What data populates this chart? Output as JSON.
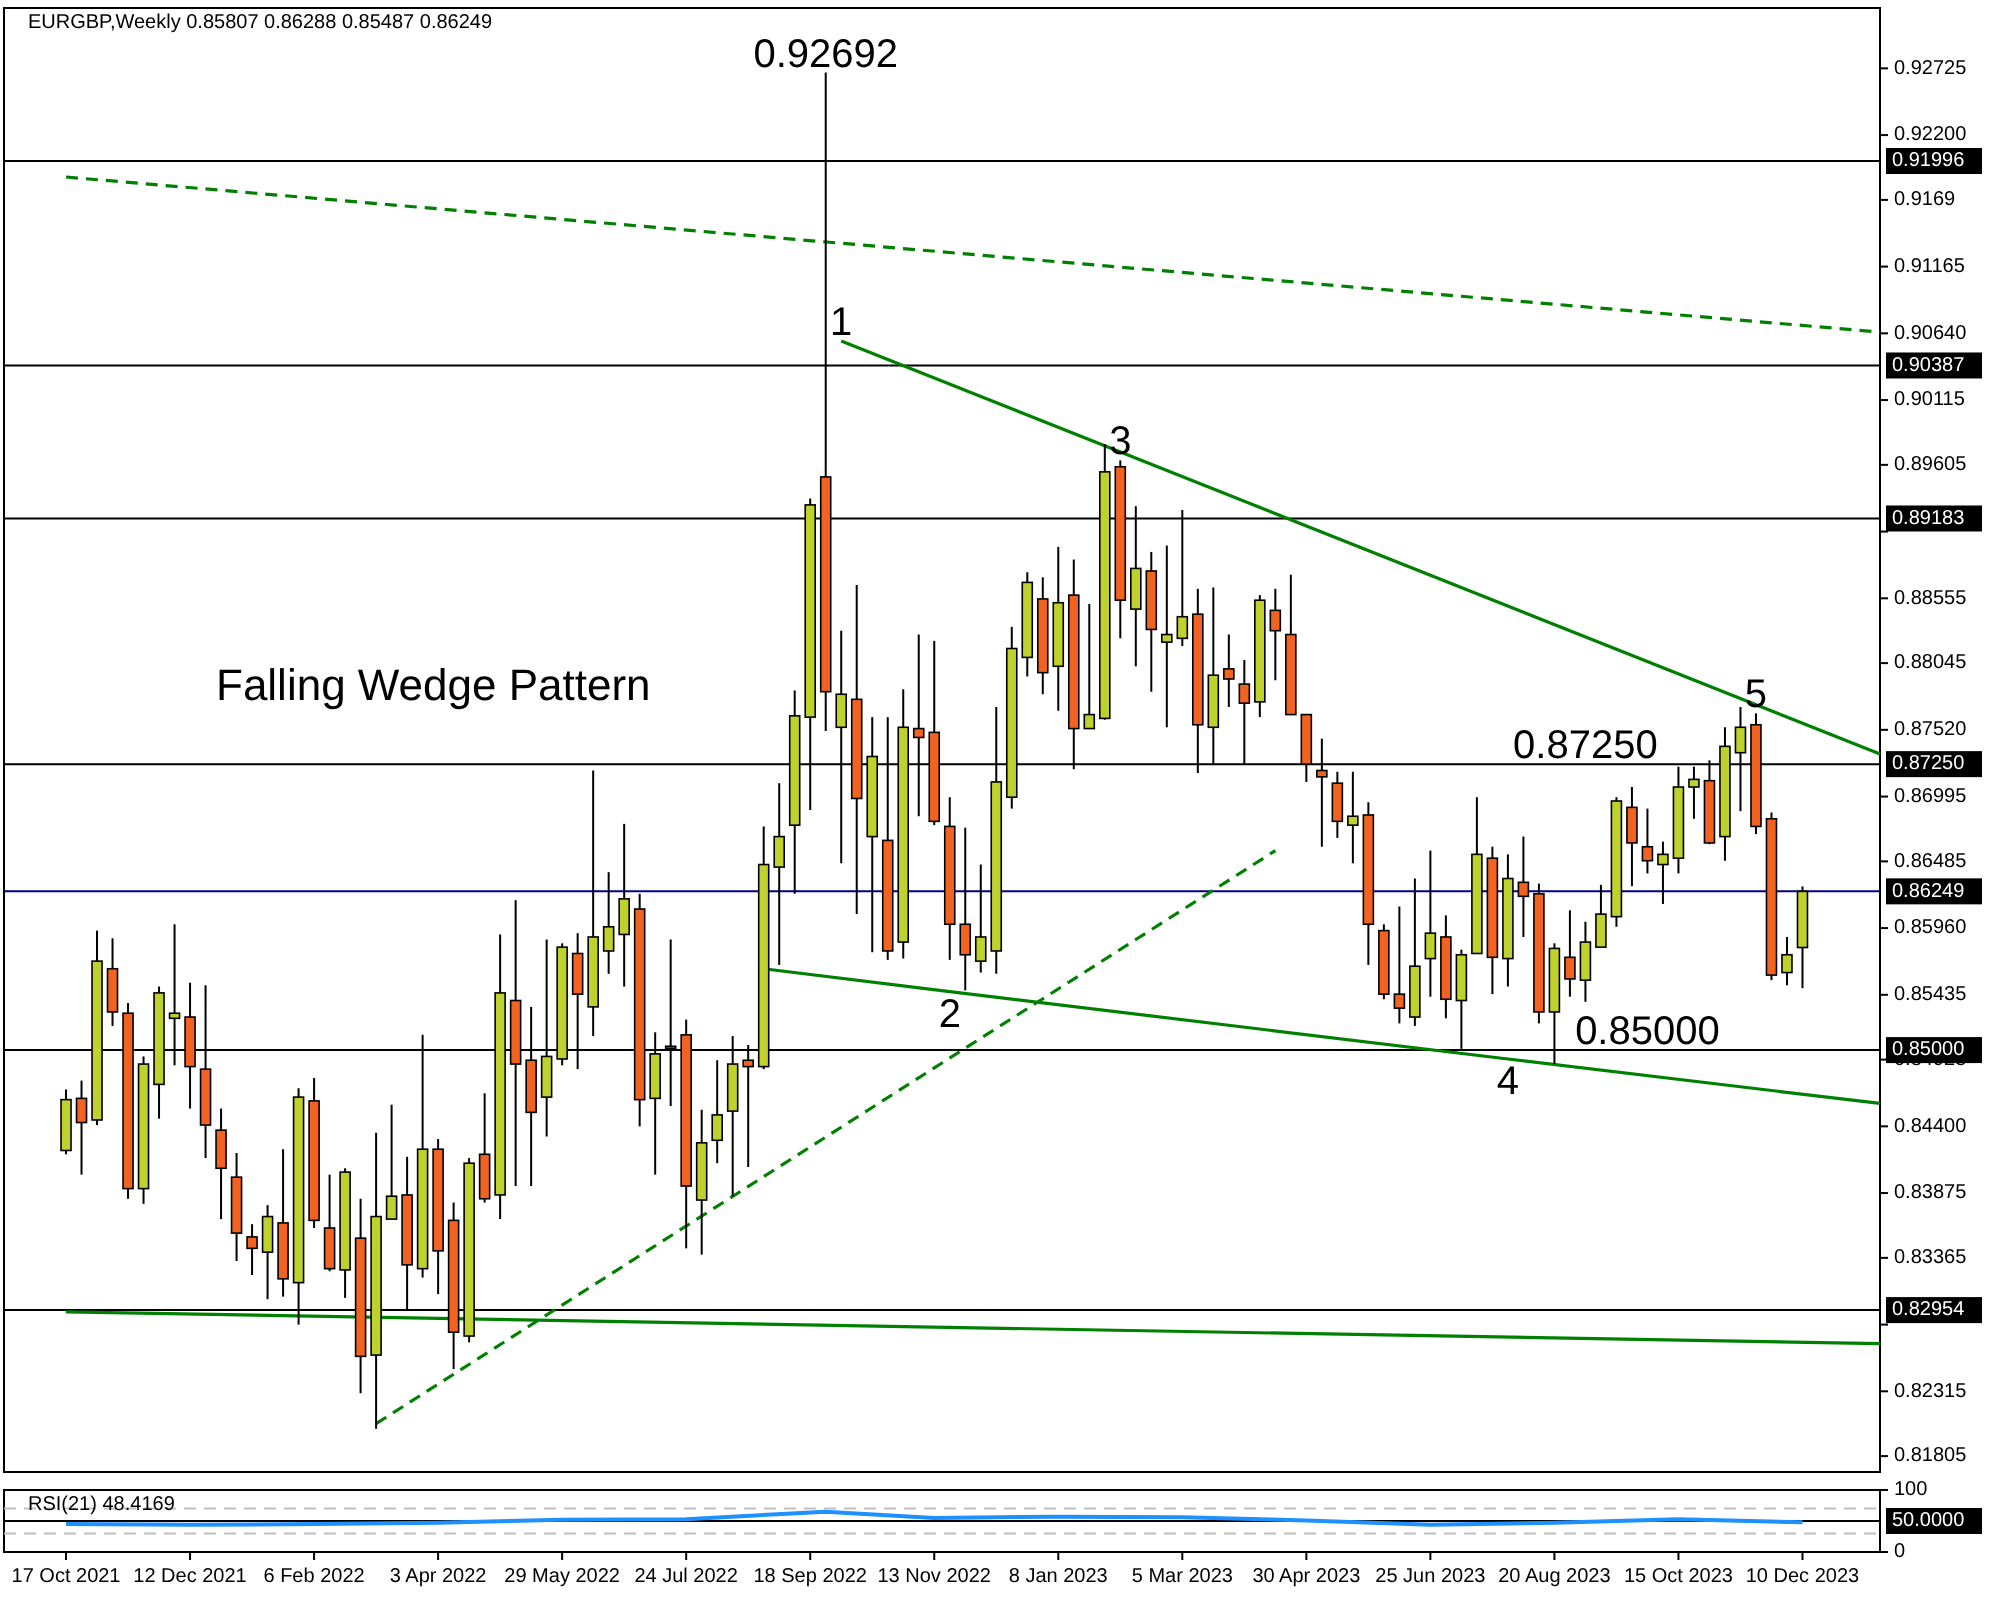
{
  "chart_data": [
    {
      "type": "candlestick",
      "title": "EURGBP,Weekly 0.85807 0.86288 0.85487 0.86249",
      "colors": [
        "#bfd12c",
        "#f26322",
        "#bfd12c",
        "#f26322",
        "#f26322",
        "#bfd12c",
        "#bfd12c",
        "#bfd12c",
        "#f26322",
        "#f26322",
        "#f26322",
        "#f26322",
        "#f26322",
        "#bfd12c",
        "#f26322",
        "#bfd12c",
        "#f26322",
        "#f26322",
        "#bfd12c",
        "#f26322",
        "#bfd12c",
        "#bfd12c",
        "#f26322",
        "#bfd12c",
        "#f26322",
        "#f26322",
        "#bfd12c",
        "#f26322",
        "#bfd12c",
        "#f26322",
        "#f26322",
        "#bfd12c",
        "#bfd12c",
        "#f26322",
        "#bfd12c",
        "#bfd12c",
        "#bfd12c",
        "#f26322",
        "#bfd12c",
        "#bfd12c",
        "#f26322",
        "#bfd12c",
        "#bfd12c",
        "#bfd12c",
        "#f26322",
        "#bfd12c",
        "#bfd12c",
        "#bfd12c",
        "#bfd12c",
        "#f26322",
        "#bfd12c",
        "#f26322",
        "#bfd12c",
        "#f26322",
        "#bfd12c",
        "#f26322",
        "#f26322",
        "#f26322",
        "#f26322",
        "#bfd12c",
        "#bfd12c",
        "#bfd12c",
        "#bfd12c",
        "#f26322",
        "#bfd12c",
        "#f26322",
        "#bfd12c",
        "#bfd12c",
        "#f26322",
        "#bfd12c",
        "#f26322",
        "#bfd12c",
        "#bfd12c",
        "#f26322",
        "#bfd12c",
        "#f26322",
        "#f26322",
        "#bfd12c",
        "#f26322",
        "#f26322",
        "#f26322",
        "#f26322",
        "#f26322",
        "#bfd12c",
        "#f26322",
        "#f26322",
        "#f26322",
        "#bfd12c",
        "#bfd12c",
        "#f26322",
        "#bfd12c",
        "#bfd12c",
        "#f26322",
        "#bfd12c",
        "#f26322",
        "#f26322",
        "#bfd12c",
        "#f26322",
        "#bfd12c",
        "#bfd12c",
        "#bfd12c",
        "#f26322",
        "#f26322",
        "#bfd12c",
        "#bfd12c",
        "#bfd12c",
        "#f26322",
        "#bfd12c",
        "#bfd12c",
        "#f26322",
        "#f26322",
        "#bfd12c",
        "#bfd12c"
      ],
      "x": [
        "2021-10-17",
        "2021-10-24",
        "2021-10-31",
        "2021-11-07",
        "2021-11-14",
        "2021-11-21",
        "2021-11-28",
        "2021-12-05",
        "2021-12-12",
        "2021-12-19",
        "2021-12-26",
        "2022-01-02",
        "2022-01-09",
        "2022-01-16",
        "2022-01-23",
        "2022-01-30",
        "2022-02-06",
        "2022-02-13",
        "2022-02-20",
        "2022-02-27",
        "2022-03-06",
        "2022-03-13",
        "2022-03-20",
        "2022-03-27",
        "2022-04-03",
        "2022-04-10",
        "2022-04-17",
        "2022-04-24",
        "2022-05-01",
        "2022-05-08",
        "2022-05-15",
        "2022-05-22",
        "2022-05-29",
        "2022-06-05",
        "2022-06-12",
        "2022-06-19",
        "2022-06-26",
        "2022-07-03",
        "2022-07-10",
        "2022-07-17",
        "2022-07-24",
        "2022-07-31",
        "2022-08-07",
        "2022-08-14",
        "2022-08-21",
        "2022-08-28",
        "2022-09-04",
        "2022-09-11",
        "2022-09-18",
        "2022-09-25",
        "2022-10-02",
        "2022-10-09",
        "2022-10-16",
        "2022-10-23",
        "2022-10-30",
        "2022-11-06",
        "2022-11-13",
        "2022-11-20",
        "2022-11-27",
        "2022-12-04",
        "2022-12-11",
        "2022-12-18",
        "2022-12-25",
        "2023-01-01",
        "2023-01-08",
        "2023-01-15",
        "2023-01-22",
        "2023-01-29",
        "2023-02-05",
        "2023-02-12",
        "2023-02-19",
        "2023-02-26",
        "2023-03-05",
        "2023-03-12",
        "2023-03-19",
        "2023-03-26",
        "2023-04-02",
        "2023-04-09",
        "2023-04-16",
        "2023-04-23",
        "2023-04-30",
        "2023-05-07",
        "2023-05-14",
        "2023-05-21",
        "2023-05-28",
        "2023-06-04",
        "2023-06-11",
        "2023-06-18",
        "2023-06-25",
        "2023-07-02",
        "2023-07-09",
        "2023-07-16",
        "2023-07-23",
        "2023-07-30",
        "2023-08-06",
        "2023-08-13",
        "2023-08-20",
        "2023-08-27",
        "2023-09-03",
        "2023-09-10",
        "2023-09-17",
        "2023-09-24",
        "2023-10-01",
        "2023-10-08",
        "2023-10-15",
        "2023-10-22",
        "2023-10-29",
        "2023-11-05",
        "2023-11-12",
        "2023-11-19",
        "2023-11-26",
        "2023-12-03",
        "2023-12-10"
      ],
      "ohlc": [
        [
          0.8421,
          0.8469,
          0.8418,
          0.8461
        ],
        [
          0.8462,
          0.8476,
          0.8402,
          0.8443
        ],
        [
          0.8445,
          0.8594,
          0.8441,
          0.857
        ],
        [
          0.8564,
          0.8588,
          0.8519,
          0.853
        ],
        [
          0.8529,
          0.8537,
          0.8383,
          0.8391
        ],
        [
          0.8391,
          0.8495,
          0.8379,
          0.8489
        ],
        [
          0.8473,
          0.855,
          0.8446,
          0.8545
        ],
        [
          0.8525,
          0.8599,
          0.8488,
          0.8529
        ],
        [
          0.8526,
          0.8553,
          0.8454,
          0.8487
        ],
        [
          0.8485,
          0.8551,
          0.8415,
          0.8441
        ],
        [
          0.8437,
          0.8454,
          0.8367,
          0.8407
        ],
        [
          0.84,
          0.8419,
          0.8334,
          0.8356
        ],
        [
          0.8353,
          0.8363,
          0.8323,
          0.8344
        ],
        [
          0.8341,
          0.8378,
          0.8304,
          0.8369
        ],
        [
          0.8364,
          0.8422,
          0.8306,
          0.832
        ],
        [
          0.8317,
          0.847,
          0.8284,
          0.8463
        ],
        [
          0.846,
          0.8478,
          0.836,
          0.8366
        ],
        [
          0.836,
          0.8402,
          0.8326,
          0.8328
        ],
        [
          0.8327,
          0.8407,
          0.8305,
          0.8404
        ],
        [
          0.8352,
          0.8383,
          0.823,
          0.8259
        ],
        [
          0.826,
          0.8435,
          0.8202,
          0.8369
        ],
        [
          0.8367,
          0.8457,
          0.8367,
          0.8385
        ],
        [
          0.8386,
          0.8416,
          0.8296,
          0.8331
        ],
        [
          0.8328,
          0.8512,
          0.8321,
          0.8422
        ],
        [
          0.8422,
          0.843,
          0.8308,
          0.8342
        ],
        [
          0.8366,
          0.838,
          0.8249,
          0.8278
        ],
        [
          0.8275,
          0.8415,
          0.827,
          0.8411
        ],
        [
          0.8418,
          0.8466,
          0.838,
          0.8383
        ],
        [
          0.8386,
          0.8591,
          0.8367,
          0.8545
        ],
        [
          0.8539,
          0.8618,
          0.8393,
          0.8489
        ],
        [
          0.8492,
          0.8534,
          0.8393,
          0.8451
        ],
        [
          0.8463,
          0.8587,
          0.8432,
          0.8495
        ],
        [
          0.8493,
          0.8584,
          0.8488,
          0.8581
        ],
        [
          0.8576,
          0.8592,
          0.8485,
          0.8544
        ],
        [
          0.8534,
          0.872,
          0.8511,
          0.8589
        ],
        [
          0.8578,
          0.864,
          0.856,
          0.8597
        ],
        [
          0.8591,
          0.8678,
          0.855,
          0.8619
        ],
        [
          0.8611,
          0.8623,
          0.844,
          0.8461
        ],
        [
          0.8462,
          0.8514,
          0.8402,
          0.8497
        ],
        [
          0.8502,
          0.8587,
          0.8456,
          0.8503
        ],
        [
          0.8512,
          0.8524,
          0.8344,
          0.8393
        ],
        [
          0.8382,
          0.8453,
          0.8339,
          0.8427
        ],
        [
          0.8429,
          0.8492,
          0.8411,
          0.8449
        ],
        [
          0.8452,
          0.8511,
          0.8385,
          0.8489
        ],
        [
          0.8492,
          0.8504,
          0.8408,
          0.8487
        ],
        [
          0.8487,
          0.8676,
          0.8485,
          0.8646
        ],
        [
          0.8644,
          0.871,
          0.8567,
          0.8668
        ],
        [
          0.8677,
          0.8783,
          0.8623,
          0.8763
        ],
        [
          0.8762,
          0.8934,
          0.8689,
          0.8929
        ],
        [
          0.8951,
          0.92692,
          0.8751,
          0.8782
        ],
        [
          0.8754,
          0.883,
          0.8647,
          0.878
        ],
        [
          0.8776,
          0.8866,
          0.8607,
          0.8698
        ],
        [
          0.8668,
          0.8762,
          0.8577,
          0.8731
        ],
        [
          0.8665,
          0.8762,
          0.8571,
          0.8578
        ],
        [
          0.8585,
          0.8784,
          0.8572,
          0.8754
        ],
        [
          0.8753,
          0.8827,
          0.8684,
          0.8746
        ],
        [
          0.875,
          0.8822,
          0.8677,
          0.868
        ],
        [
          0.8676,
          0.8699,
          0.8571,
          0.8599
        ],
        [
          0.8599,
          0.8675,
          0.8547,
          0.8575
        ],
        [
          0.857,
          0.8646,
          0.8561,
          0.8589
        ],
        [
          0.8578,
          0.877,
          0.856,
          0.8711
        ],
        [
          0.8699,
          0.8833,
          0.869,
          0.8816
        ],
        [
          0.8809,
          0.8876,
          0.8794,
          0.8868
        ],
        [
          0.8855,
          0.8872,
          0.878,
          0.8797
        ],
        [
          0.8802,
          0.8896,
          0.8767,
          0.8852
        ],
        [
          0.8858,
          0.8886,
          0.8721,
          0.8753
        ],
        [
          0.8753,
          0.8851,
          0.8753,
          0.8764
        ],
        [
          0.8761,
          0.8977,
          0.876,
          0.8955
        ],
        [
          0.8959,
          0.8964,
          0.8824,
          0.8854
        ],
        [
          0.8847,
          0.8928,
          0.8802,
          0.8879
        ],
        [
          0.8877,
          0.8892,
          0.8782,
          0.8831
        ],
        [
          0.8821,
          0.8897,
          0.8754,
          0.8827
        ],
        [
          0.8824,
          0.8925,
          0.8818,
          0.8841
        ],
        [
          0.8843,
          0.8863,
          0.8718,
          0.8756
        ],
        [
          0.8754,
          0.8864,
          0.8725,
          0.8795
        ],
        [
          0.88,
          0.8827,
          0.877,
          0.8792
        ],
        [
          0.8788,
          0.8807,
          0.8725,
          0.8773
        ],
        [
          0.8774,
          0.8858,
          0.8762,
          0.8854
        ],
        [
          0.8846,
          0.8863,
          0.8791,
          0.883
        ],
        [
          0.8827,
          0.8874,
          0.8764,
          0.8764
        ],
        [
          0.8764,
          0.8764,
          0.8711,
          0.8725
        ],
        [
          0.872,
          0.8745,
          0.866,
          0.8715
        ],
        [
          0.871,
          0.8719,
          0.8667,
          0.868
        ],
        [
          0.8677,
          0.8719,
          0.8647,
          0.8684
        ],
        [
          0.8685,
          0.8695,
          0.8567,
          0.8599
        ],
        [
          0.8594,
          0.8599,
          0.854,
          0.8544
        ],
        [
          0.8544,
          0.8613,
          0.8521,
          0.8533
        ],
        [
          0.8526,
          0.8635,
          0.8519,
          0.8566
        ],
        [
          0.8572,
          0.8657,
          0.8542,
          0.8592
        ],
        [
          0.8589,
          0.8606,
          0.8525,
          0.854
        ],
        [
          0.8539,
          0.8579,
          0.8501,
          0.8575
        ],
        [
          0.8576,
          0.8699,
          0.8576,
          0.8654
        ],
        [
          0.8651,
          0.866,
          0.8544,
          0.8573
        ],
        [
          0.8572,
          0.8654,
          0.855,
          0.8635
        ],
        [
          0.8632,
          0.8668,
          0.8589,
          0.8621
        ],
        [
          0.8623,
          0.8631,
          0.8521,
          0.853
        ],
        [
          0.853,
          0.8584,
          0.8489,
          0.858
        ],
        [
          0.8573,
          0.861,
          0.8542,
          0.8556
        ],
        [
          0.8555,
          0.8601,
          0.8538,
          0.8585
        ],
        [
          0.8581,
          0.863,
          0.8581,
          0.8607
        ],
        [
          0.8605,
          0.8699,
          0.8597,
          0.8696
        ],
        [
          0.8691,
          0.8707,
          0.8629,
          0.8663
        ],
        [
          0.866,
          0.869,
          0.8639,
          0.8649
        ],
        [
          0.8646,
          0.8664,
          0.8615,
          0.8654
        ],
        [
          0.8651,
          0.8723,
          0.8639,
          0.8707
        ],
        [
          0.8707,
          0.8723,
          0.8682,
          0.8713
        ],
        [
          0.8712,
          0.8728,
          0.8662,
          0.8663
        ],
        [
          0.8668,
          0.8754,
          0.8649,
          0.8739
        ],
        [
          0.8734,
          0.877,
          0.8688,
          0.8754
        ],
        [
          0.8756,
          0.8765,
          0.867,
          0.8676
        ],
        [
          0.8682,
          0.8687,
          0.8555,
          0.8559
        ],
        [
          0.8561,
          0.8589,
          0.8551,
          0.8575
        ],
        [
          0.85807,
          0.86288,
          0.85487,
          0.86249
        ]
      ],
      "series": [
        {
          "type": "line",
          "color": "#008000",
          "line_style": "solid",
          "x": [
            "2022-10-02",
            "2024-01-14"
          ],
          "values": [
            0.9058,
            0.8733
          ]
        },
        {
          "type": "line",
          "color": "#008000",
          "line_style": "solid",
          "x": [
            "2022-08-28",
            "2022-11-20",
            "2023-07-30",
            "2024-01-14"
          ],
          "values": [
            0.8564,
            0.8546,
            0.8493,
            0.8458
          ]
        },
        {
          "type": "line",
          "color": "#008000",
          "line_style": "solid",
          "x": [
            "2021-10-17",
            "2024-01-14"
          ],
          "values": [
            0.8294,
            0.8269
          ]
        },
        {
          "type": "line",
          "color": "#008000",
          "line_style": "dashed",
          "x": [
            "2021-10-17",
            "2024-01-14"
          ],
          "values": [
            0.9187,
            0.9065
          ]
        },
        {
          "type": "line",
          "color": "#008000",
          "line_style": "dashed",
          "x": [
            "2022-03-06",
            "2023-04-16"
          ],
          "values": [
            0.8206,
            0.8657
          ]
        }
      ],
      "xlim": [
        "2021-09-19",
        "2024-01-14"
      ],
      "ylim": [
        0.8168,
        0.932
      ],
      "yticks": [
        0.92725,
        {
          "value": 0.922,
          "label": "0.92200"
        },
        0.9169,
        0.91165,
        {
          "value": 0.9064,
          "label": "0.90640"
        },
        0.90115,
        0.89605,
        {
          "value": 0.8908,
          "label": null
        },
        0.88555,
        0.88045,
        {
          "value": 0.8752,
          "label": "0.87520"
        },
        0.86995,
        0.86485,
        {
          "value": 0.8596,
          "label": "0.85960"
        },
        0.85435,
        0.84925,
        {
          "value": 0.844,
          "label": "0.84400"
        },
        0.83875,
        0.83365,
        {
          "value": 0.8284,
          "label": null
        },
        0.82315,
        0.81805
      ],
      "tick_labels": "y",
      "ref_lines": [
        {
          "axis": "y",
          "value": 0.91996,
          "label": "0.91996",
          "color": "#000000"
        },
        {
          "axis": "y",
          "value": 0.90387,
          "label": "0.90387",
          "color": "#000000"
        },
        {
          "axis": "y",
          "value": 0.89183,
          "label": "0.89183",
          "color": "#000000"
        },
        {
          "axis": "y",
          "value": 0.8725,
          "label": "0.87250",
          "color": "#000000"
        },
        {
          "axis": "y",
          "value": 0.86249,
          "label": "0.86249",
          "color": "#00008b"
        },
        {
          "axis": "y",
          "value": 0.85,
          "label": "0.85000",
          "color": "#000000"
        },
        {
          "axis": "y",
          "value": 0.82954,
          "label": "0.82954",
          "color": "#000000"
        }
      ],
      "annotations": [
        {
          "text": "0.92692",
          "x": "2022-09-25",
          "y": 0.92692
        },
        "Falling Wedge Pattern",
        {
          "text": "1",
          "x": "2022-10-02",
          "y": 0.9058
        },
        {
          "text": "2",
          "x": "2022-11-20",
          "y": 0.8546
        },
        {
          "text": "3",
          "x": "2023-02-05",
          "y": 0.8964
        },
        {
          "text": "4",
          "x": "2023-07-30",
          "y": 0.8493
        },
        {
          "text": "5",
          "x": "2023-11-19",
          "y": 0.8765
        },
        {
          "text": "0.87250",
          "x": "2023-09-03",
          "y": 0.8725
        },
        {
          "text": "0.85000",
          "x": "2023-10-01",
          "y": 0.85
        }
      ]
    },
    {
      "type": "line",
      "title": "RSI(21) 48.4169",
      "series": [
        {
          "color": "#1e90ff",
          "x": [
            "2021-10-17",
            "2021-12-12",
            "2022-02-06",
            "2022-04-03",
            "2022-05-29",
            "2022-07-24",
            "2022-09-25",
            "2022-11-13",
            "2023-01-08",
            "2023-03-05",
            "2023-04-30",
            "2023-06-25",
            "2023-08-20",
            "2023-10-15",
            "2023-12-10"
          ],
          "values": [
            45,
            44,
            45,
            47,
            52,
            53,
            65,
            55,
            57,
            56,
            51,
            44,
            47,
            53,
            48
          ]
        }
      ],
      "xlim": [
        "2021-09-19",
        "2024-01-14"
      ],
      "ylim": [
        0,
        100
      ],
      "yticks": [
        0,
        100
      ],
      "xticks": [
        {
          "value": "2021-10-17",
          "label": "17 Oct 2021"
        },
        {
          "value": "2021-12-12",
          "label": "12 Dec 2021"
        },
        {
          "value": "2022-02-06",
          "label": "6 Feb 2022"
        },
        {
          "value": "2022-04-03",
          "label": "3 Apr 2022"
        },
        {
          "value": "2022-05-29",
          "label": "29 May 2022"
        },
        {
          "value": "2022-07-24",
          "label": "24 Jul 2022"
        },
        {
          "value": "2022-09-18",
          "label": "18 Sep 2022"
        },
        {
          "value": "2022-11-13",
          "label": "13 Nov 2022"
        },
        {
          "value": "2023-01-08",
          "label": "8 Jan 2023"
        },
        {
          "value": "2023-03-05",
          "label": "5 Mar 2023"
        },
        {
          "value": "2023-04-30",
          "label": "30 Apr 2023"
        },
        {
          "value": "2023-06-25",
          "label": "25 Jun 2023"
        },
        {
          "value": "2023-08-20",
          "label": "20 Aug 2023"
        },
        {
          "value": "2023-10-15",
          "label": "15 Oct 2023"
        },
        {
          "value": "2023-12-10",
          "label": "10 Dec 2023"
        }
      ],
      "ref_lines": [
        {
          "axis": "y",
          "value": 70,
          "color": "#c0c0c0",
          "line_style": "dashed"
        },
        {
          "axis": "y",
          "value": 30,
          "color": "#c0c0c0",
          "line_style": "dashed"
        },
        {
          "axis": "y",
          "value": 50,
          "label": "50.0000",
          "color": "#000000"
        }
      ]
    }
  ]
}
